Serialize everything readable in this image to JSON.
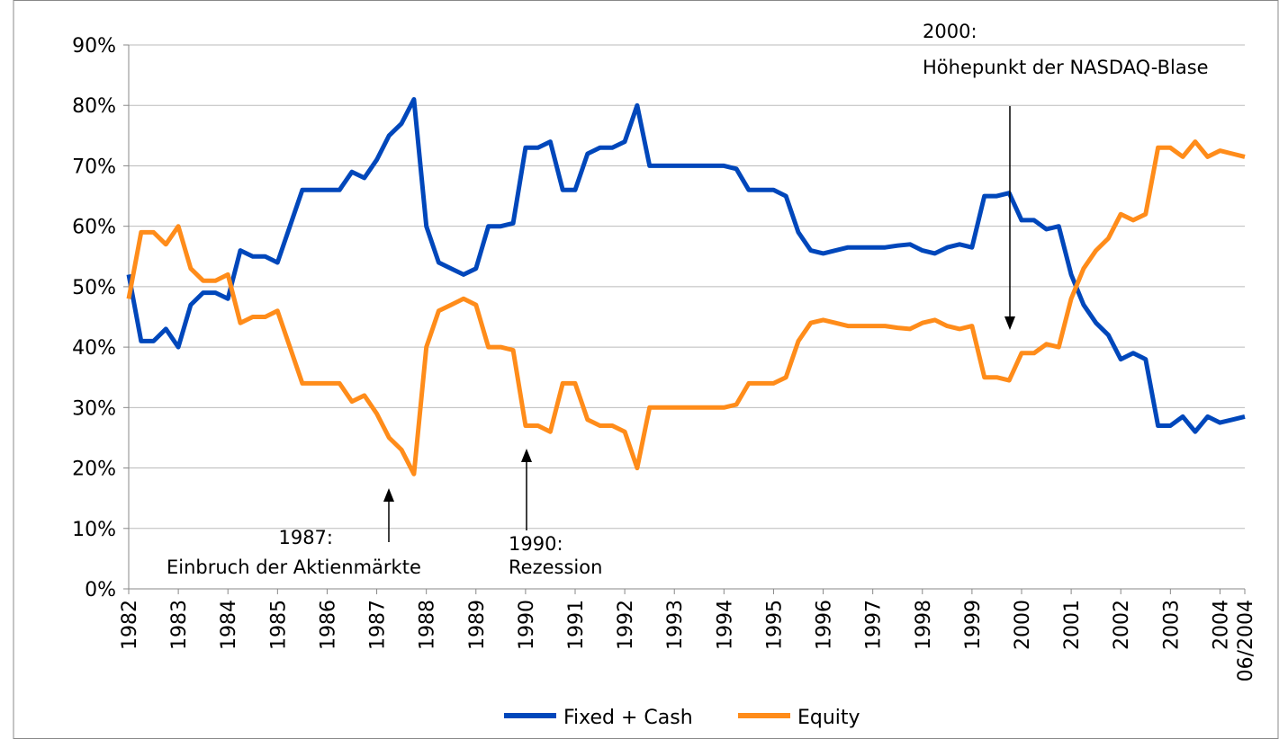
{
  "chart_data": {
    "type": "line",
    "categories": [
      "1982",
      null,
      null,
      null,
      "1983",
      null,
      null,
      null,
      "1984",
      null,
      null,
      null,
      "1985",
      null,
      null,
      null,
      "1986",
      null,
      null,
      null,
      "1987",
      null,
      null,
      null,
      "1988",
      null,
      null,
      null,
      "1989",
      null,
      null,
      null,
      "1990",
      null,
      null,
      null,
      "1991",
      null,
      null,
      null,
      "1992",
      null,
      null,
      null,
      "1993",
      null,
      null,
      null,
      "1994",
      null,
      null,
      null,
      "1995",
      null,
      null,
      null,
      "1996",
      null,
      null,
      null,
      "1997",
      null,
      null,
      null,
      "1998",
      null,
      null,
      null,
      "1999",
      null,
      null,
      null,
      "2000",
      null,
      null,
      null,
      "2001",
      null,
      null,
      null,
      "2002",
      null,
      null,
      null,
      "2003",
      null,
      null,
      null,
      "2004",
      null,
      "06/2004"
    ],
    "series": [
      {
        "name": "Fixed + Cash",
        "color": "#0047bb",
        "values": [
          52,
          41,
          41,
          43,
          40,
          47,
          49,
          49,
          48,
          56,
          55,
          55,
          54,
          60,
          66,
          66,
          66,
          66,
          69,
          68,
          71,
          75,
          77,
          81,
          60,
          54,
          53,
          52,
          53,
          60,
          60,
          60.5,
          73,
          73,
          74,
          66,
          66,
          72,
          73,
          73,
          74,
          80,
          70,
          70,
          70,
          70,
          70,
          70,
          70,
          69.5,
          66,
          66,
          66,
          65,
          59,
          56,
          55.5,
          56,
          56.5,
          56.5,
          56.5,
          56.5,
          56.8,
          57,
          56,
          55.5,
          56.5,
          57,
          56.5,
          65,
          65,
          65.5,
          61,
          61,
          59.5,
          60,
          52,
          47,
          44,
          42,
          38,
          39,
          38,
          27,
          27,
          28.5,
          26,
          28.5,
          27.5,
          28,
          28.5
        ]
      },
      {
        "name": "Equity",
        "color": "#ff8c1a",
        "values": [
          48,
          59,
          59,
          57,
          60,
          53,
          51,
          51,
          52,
          44,
          45,
          45,
          46,
          40,
          34,
          34,
          34,
          34,
          31,
          32,
          29,
          25,
          23,
          19,
          40,
          46,
          47,
          48,
          47,
          40,
          40,
          39.5,
          27,
          27,
          26,
          34,
          34,
          28,
          27,
          27,
          26,
          20,
          30,
          30,
          30,
          30,
          30,
          30,
          30,
          30.5,
          34,
          34,
          34,
          35,
          41,
          44,
          44.5,
          44,
          43.5,
          43.5,
          43.5,
          43.5,
          43.2,
          43,
          44,
          44.5,
          43.5,
          43,
          43.5,
          35,
          35,
          34.5,
          39,
          39,
          40.5,
          40,
          48,
          53,
          56,
          58,
          62,
          61,
          62,
          73,
          73,
          71.5,
          74,
          71.5,
          72.5,
          72,
          71.5
        ]
      }
    ],
    "ylim": [
      0,
      90
    ],
    "yticks": [
      {
        "value": 0,
        "label": "0%"
      },
      {
        "value": 10,
        "label": "10%"
      },
      {
        "value": 20,
        "label": "20%"
      },
      {
        "value": 30,
        "label": "30%"
      },
      {
        "value": 40,
        "label": "40%"
      },
      {
        "value": 50,
        "label": "50%"
      },
      {
        "value": 60,
        "label": "60%"
      },
      {
        "value": 70,
        "label": "70%"
      },
      {
        "value": 80,
        "label": "80%"
      },
      {
        "value": 90,
        "label": "90%"
      }
    ],
    "grid": true,
    "legend": "bottom",
    "annotations": [
      {
        "lines": [
          "1987:",
          "Einbruch der Aktienmärkte"
        ]
      },
      {
        "lines": [
          "1990:",
          "Rezession"
        ]
      },
      {
        "lines": [
          "2000:",
          "Höhepunkt der NASDAQ-Blase"
        ]
      }
    ]
  }
}
